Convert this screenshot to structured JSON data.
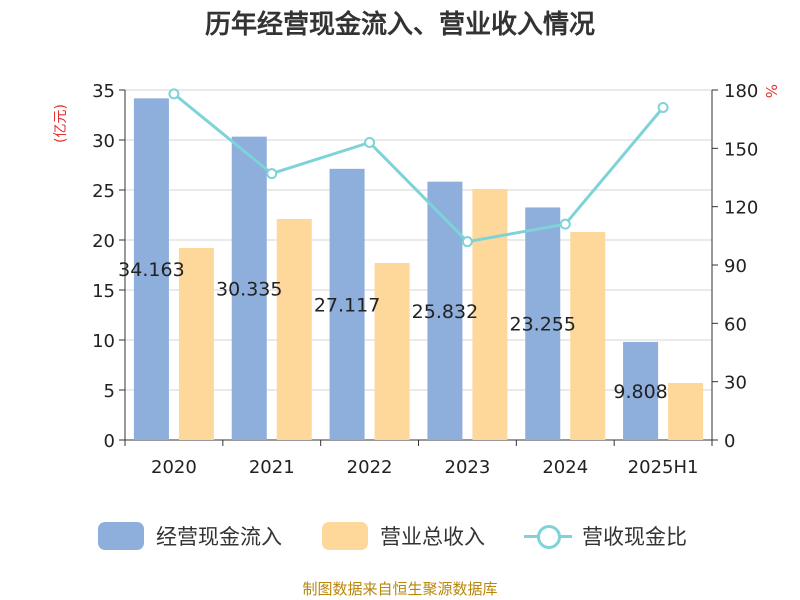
{
  "title": "历年经营现金流入、营业收入情况",
  "source": "制图数据来自恒生聚源数据库",
  "chart_data": {
    "type": "bar",
    "categories": [
      "2020",
      "2021",
      "2022",
      "2023",
      "2024",
      "2025H1"
    ],
    "series": [
      {
        "name": "经营现金流入",
        "kind": "bar",
        "axis": "left",
        "color": "#8eaedc",
        "values": [
          34.163,
          30.335,
          27.117,
          25.832,
          23.255,
          9.808
        ],
        "labels": [
          "34.163",
          "30.335",
          "27.117",
          "25.832",
          "23.255",
          "9.808"
        ]
      },
      {
        "name": "营业总收入",
        "kind": "bar",
        "axis": "left",
        "color": "#fdd89a",
        "values": [
          19.2,
          22.1,
          17.7,
          25.1,
          20.8,
          5.7
        ]
      },
      {
        "name": "营收现金比",
        "kind": "line",
        "axis": "right",
        "color": "#7dd3d8",
        "values": [
          178,
          137,
          153,
          102,
          111,
          171
        ]
      }
    ],
    "ylabel_left": "(亿元)",
    "ylabel_right": "%",
    "ylim_left": [
      0,
      35
    ],
    "ylim_right": [
      0,
      180
    ],
    "yticks_left": [
      0,
      5,
      10,
      15,
      20,
      25,
      30,
      35
    ],
    "yticks_right": [
      0,
      30,
      60,
      90,
      120,
      150,
      180
    ],
    "grid": true,
    "legend": "bottom"
  }
}
